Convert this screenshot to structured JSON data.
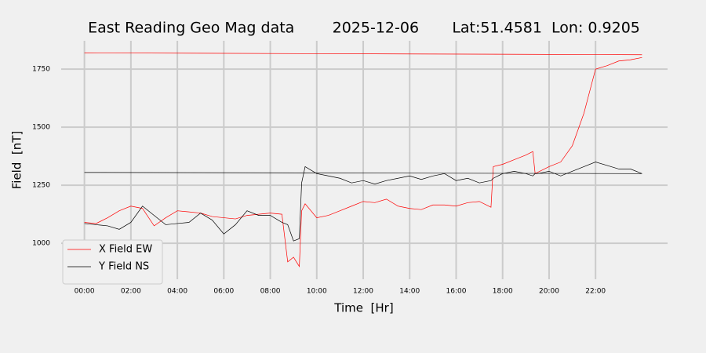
{
  "chart_data": {
    "type": "line",
    "title": "East Reading Geo Mag data        2025-12-06       Lat:51.4581  Lon: 0.9205",
    "x_label": "Time  [Hr]",
    "y_label": "Field  [nT]",
    "x": [
      0,
      0.5,
      1,
      1.5,
      2,
      2.5,
      3,
      3.5,
      4,
      4.5,
      5,
      5.5,
      6,
      6.5,
      7,
      7.5,
      8,
      8.5,
      8.75,
      9,
      9.25,
      9.35,
      9.5,
      10,
      10.5,
      11,
      11.5,
      12,
      12.5,
      13,
      13.5,
      14,
      14.5,
      15,
      15.5,
      16,
      16.5,
      17,
      17.5,
      17.6,
      18,
      18.5,
      19,
      19.3,
      19.4,
      19.5,
      20,
      20.5,
      21,
      21.5,
      22,
      22.5,
      23,
      23.5,
      24
    ],
    "series": [
      {
        "name": "X Field EW",
        "color": "#ff0000",
        "values": [
          1090,
          1085,
          1110,
          1140,
          1160,
          1150,
          1075,
          1110,
          1140,
          1135,
          1130,
          1115,
          1110,
          1105,
          1120,
          1125,
          1130,
          1125,
          920,
          940,
          900,
          1140,
          1170,
          1110,
          1120,
          1140,
          1160,
          1180,
          1175,
          1190,
          1160,
          1150,
          1145,
          1165,
          1165,
          1160,
          1175,
          1180,
          1155,
          1330,
          1340,
          1360,
          1380,
          1395,
          1300,
          1305,
          1330,
          1350,
          1420,
          1560,
          1750,
          1765,
          1785,
          1790,
          1800
        ]
      },
      {
        "name": "Y Field NS",
        "color": "#000000",
        "values": [
          1085,
          1080,
          1075,
          1060,
          1090,
          1160,
          1120,
          1080,
          1085,
          1090,
          1130,
          1100,
          1040,
          1080,
          1140,
          1120,
          1120,
          1090,
          1080,
          1010,
          1020,
          1260,
          1330,
          1300,
          1290,
          1280,
          1260,
          1270,
          1255,
          1270,
          1280,
          1290,
          1275,
          1290,
          1300,
          1270,
          1280,
          1260,
          1270,
          1280,
          1300,
          1310,
          1300,
          1290,
          1300,
          1300,
          1310,
          1290,
          1310,
          1330,
          1350,
          1335,
          1320,
          1320,
          1300
        ]
      },
      {
        "color": "#ff0000",
        "x": [
          0,
          24
        ],
        "values": [
          1820,
          1812
        ]
      },
      {
        "color": "#000000",
        "x": [
          0,
          24
        ],
        "values": [
          1305,
          1300
        ]
      }
    ],
    "xlim": [
      -1,
      25.1
    ],
    "ylim": [
      845,
      1872
    ],
    "xticks": [
      {
        "value": 0,
        "label": "00:00"
      },
      {
        "value": 2,
        "label": "02:00"
      },
      {
        "value": 4,
        "label": "04:00"
      },
      {
        "value": 6,
        "label": "06:00"
      },
      {
        "value": 8,
        "label": "08:00"
      },
      {
        "value": 10,
        "label": "10:00"
      },
      {
        "value": 12,
        "label": "12:00"
      },
      {
        "value": 14,
        "label": "14:00"
      },
      {
        "value": 16,
        "label": "16:00"
      },
      {
        "value": 18,
        "label": "18:00"
      },
      {
        "value": 20,
        "label": "20:00"
      },
      {
        "value": 22,
        "label": "22:00"
      }
    ],
    "yticks": [
      1000,
      1250,
      1500,
      1750
    ],
    "grid": true,
    "legend": "lower-left"
  }
}
